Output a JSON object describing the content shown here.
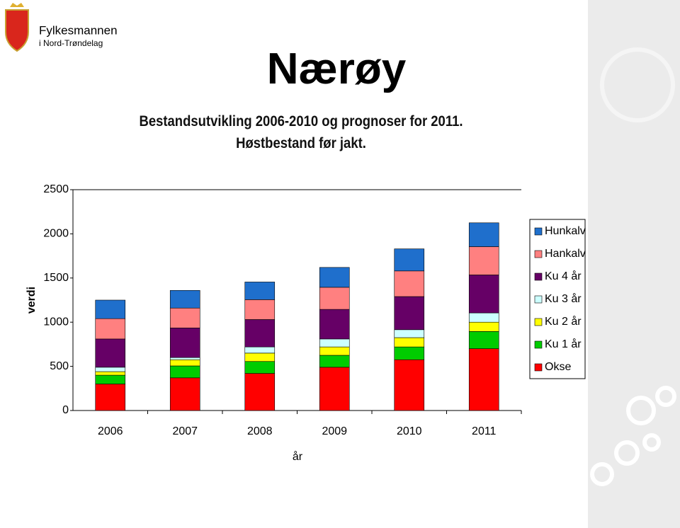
{
  "header": {
    "org": "Fylkesmannen",
    "region": "i Nord-Trøndelag"
  },
  "chart_data": {
    "type": "stacked_bar",
    "title": "Nærøy",
    "subtitle": "Bestandsutvikling 2006-2010 og prognoser for 2011. Høstbestand før jakt.",
    "x_label": "år",
    "y_label": "verdi",
    "categories": [
      "2006",
      "2007",
      "2008",
      "2009",
      "2010",
      "2011"
    ],
    "series": [
      {
        "name": "Okse",
        "color": "#ff0000",
        "values": [
          300,
          370,
          420,
          490,
          575,
          700
        ]
      },
      {
        "name": "Ku 1 år",
        "color": "#00cc00",
        "values": [
          100,
          135,
          135,
          135,
          145,
          195
        ]
      },
      {
        "name": "Ku 2 år",
        "color": "#ffff00",
        "values": [
          40,
          70,
          95,
          95,
          105,
          105
        ]
      },
      {
        "name": "Ku 3 år",
        "color": "#ccffff",
        "values": [
          50,
          25,
          70,
          90,
          90,
          105
        ]
      },
      {
        "name": "Ku 4 år",
        "color": "#660066",
        "values": [
          320,
          335,
          310,
          335,
          375,
          430
        ]
      },
      {
        "name": "Hankalv",
        "color": "#ff8080",
        "values": [
          230,
          225,
          225,
          250,
          290,
          320
        ]
      },
      {
        "name": "Hunkalv",
        "color": "#1f6fcc",
        "values": [
          210,
          200,
          200,
          225,
          250,
          270
        ]
      }
    ],
    "ylim": [
      0,
      2500
    ],
    "yticks": [
      0,
      500,
      1000,
      1500,
      2000,
      2500
    ],
    "grid": false,
    "legend": "right"
  }
}
